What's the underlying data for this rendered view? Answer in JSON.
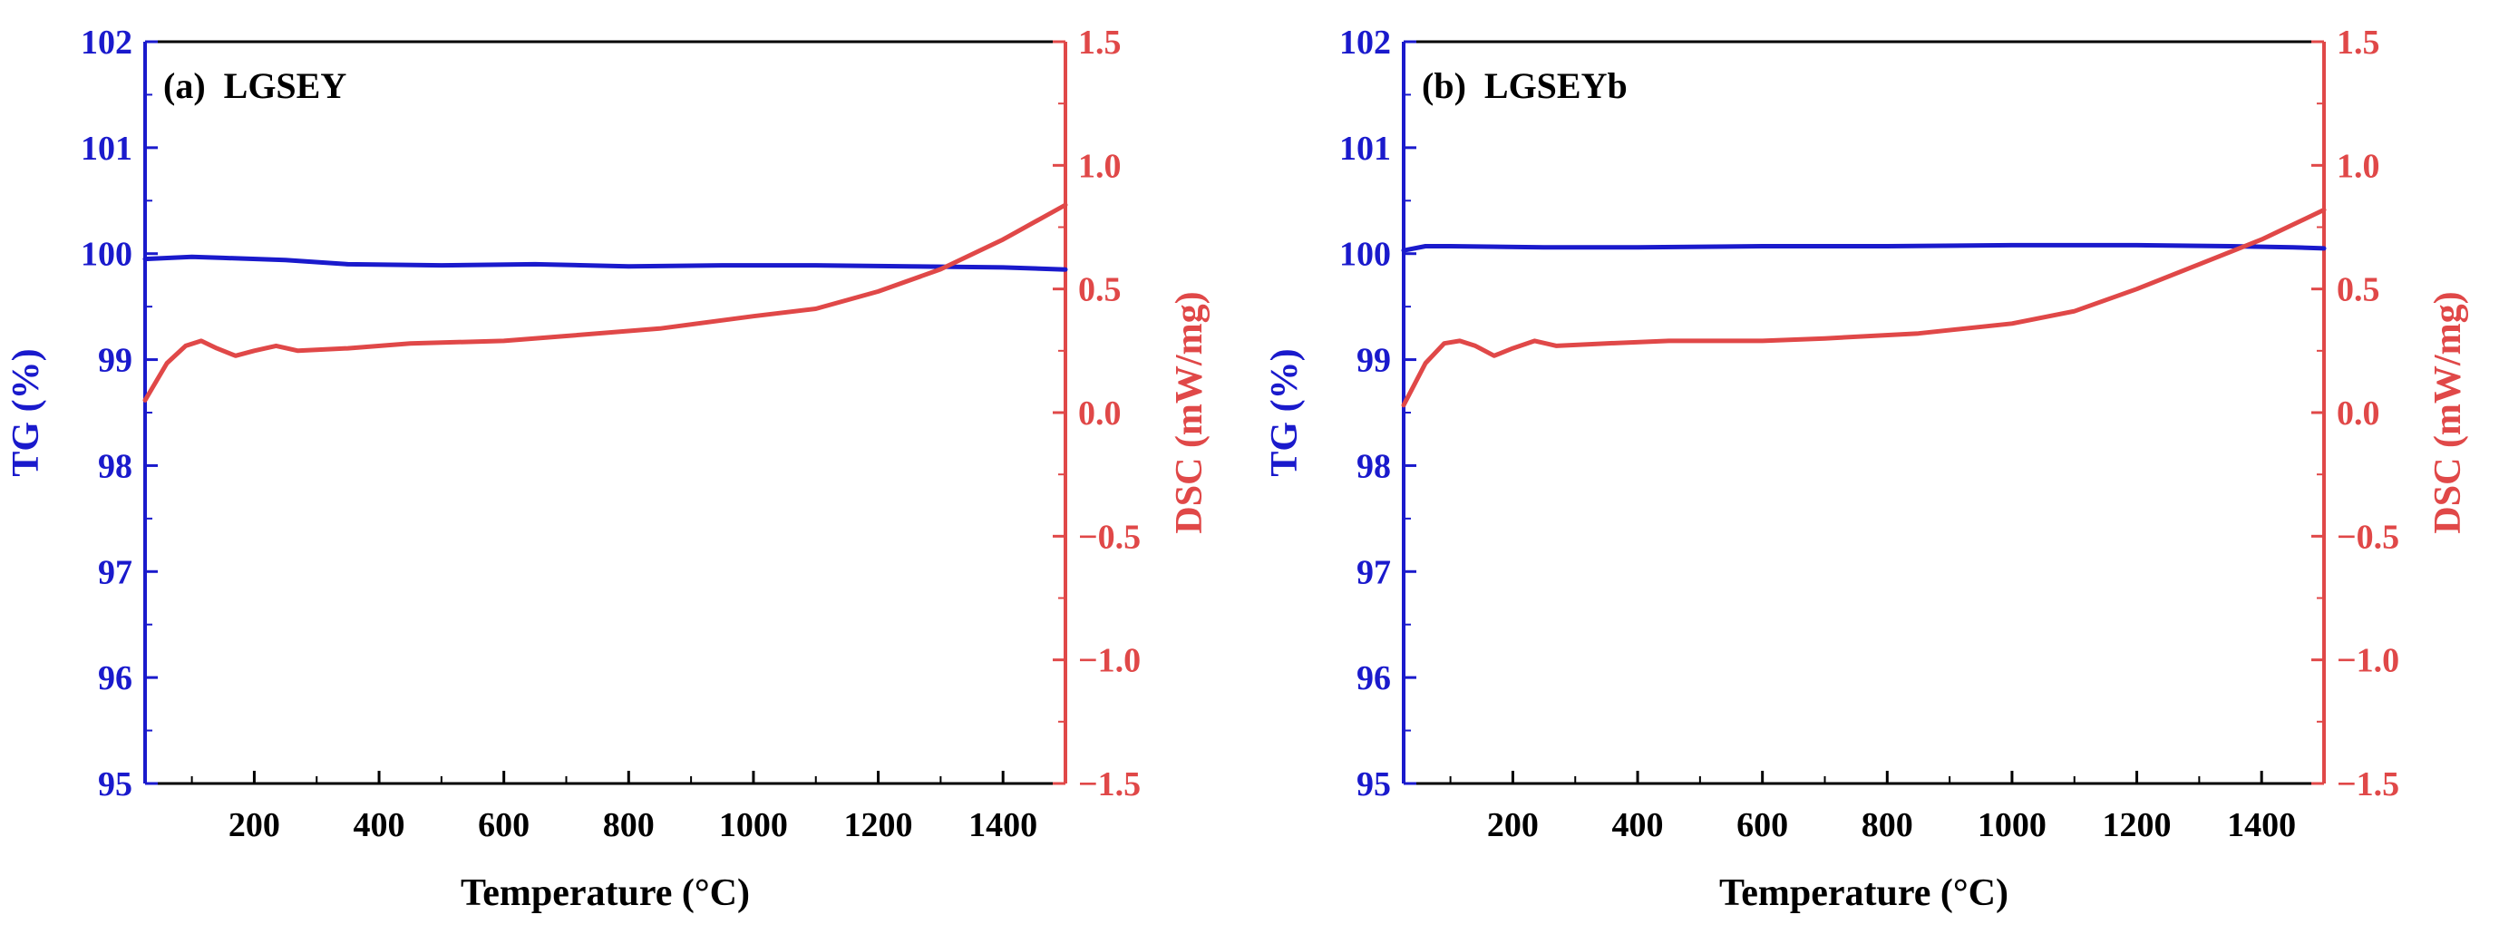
{
  "colors": {
    "tg": "#1a1acc",
    "dsc": "#e04848",
    "axis": "#000000"
  },
  "chart_data": [
    {
      "type": "line",
      "title": "(a)  LGSEY",
      "xlabel": "Temperature (°C)",
      "ylabel_left": "TG (%)",
      "ylabel_right": "DSC (mW/mg)",
      "xlim": [
        25,
        1500
      ],
      "ylim_left": [
        95,
        102
      ],
      "ylim_right": [
        -1.5,
        1.5
      ],
      "x_ticks": [
        200,
        400,
        600,
        800,
        1000,
        1200,
        1400
      ],
      "x_tick_labels": [
        "200",
        "400",
        "600",
        "800",
        "1000",
        "1200",
        "1400"
      ],
      "y_left_ticks": [
        95,
        96,
        97,
        98,
        99,
        100,
        101,
        102
      ],
      "y_left_tick_labels": [
        "95",
        "96",
        "97",
        "98",
        "99",
        "100",
        "101",
        "102"
      ],
      "y_right_ticks": [
        -1.5,
        -1.0,
        -0.5,
        0.0,
        0.5,
        1.0,
        1.5
      ],
      "y_right_tick_labels": [
        "−1.5",
        "−1.0",
        "−0.5",
        "0.0",
        "0.5",
        "1.0",
        "1.5"
      ],
      "grid": false,
      "series": [
        {
          "axis": "left",
          "x": [
            25,
            100,
            150,
            250,
            350,
            500,
            650,
            800,
            950,
            1100,
            1250,
            1400,
            1500
          ],
          "y": [
            99.95,
            99.97,
            99.96,
            99.94,
            99.9,
            99.89,
            99.9,
            99.88,
            99.89,
            99.89,
            99.88,
            99.87,
            99.85
          ]
        },
        {
          "axis": "right",
          "x": [
            25,
            60,
            90,
            115,
            140,
            170,
            200,
            235,
            270,
            350,
            450,
            600,
            700,
            850,
            1000,
            1100,
            1200,
            1300,
            1400,
            1500
          ],
          "y": [
            0.05,
            0.2,
            0.27,
            0.29,
            0.26,
            0.23,
            0.25,
            0.27,
            0.25,
            0.26,
            0.28,
            0.29,
            0.31,
            0.34,
            0.39,
            0.42,
            0.49,
            0.58,
            0.7,
            0.84
          ]
        }
      ]
    },
    {
      "type": "line",
      "title": "(b)  LGSEYb",
      "xlabel": "Temperature (°C)",
      "ylabel_left": "TG (%)",
      "ylabel_right": "DSC (mW/mg)",
      "xlim": [
        25,
        1500
      ],
      "ylim_left": [
        95,
        102
      ],
      "ylim_right": [
        -1.5,
        1.5
      ],
      "x_ticks": [
        200,
        400,
        600,
        800,
        1000,
        1200,
        1400
      ],
      "x_tick_labels": [
        "200",
        "400",
        "600",
        "800",
        "1000",
        "1200",
        "1400"
      ],
      "y_left_ticks": [
        95,
        96,
        97,
        98,
        99,
        100,
        101,
        102
      ],
      "y_left_tick_labels": [
        "95",
        "96",
        "97",
        "98",
        "99",
        "100",
        "101",
        "102"
      ],
      "y_right_ticks": [
        -1.5,
        -1.0,
        -0.5,
        0.0,
        0.5,
        1.0,
        1.5
      ],
      "y_right_tick_labels": [
        "−1.5",
        "−1.0",
        "−0.5",
        "0.0",
        "0.5",
        "1.0",
        "1.5"
      ],
      "grid": false,
      "series": [
        {
          "axis": "left",
          "x": [
            25,
            60,
            100,
            250,
            400,
            600,
            800,
            1000,
            1200,
            1350,
            1450,
            1500
          ],
          "y": [
            100.03,
            100.07,
            100.07,
            100.06,
            100.06,
            100.07,
            100.07,
            100.08,
            100.08,
            100.07,
            100.06,
            100.05
          ]
        },
        {
          "axis": "right",
          "x": [
            25,
            60,
            90,
            115,
            140,
            170,
            200,
            235,
            270,
            350,
            450,
            600,
            700,
            850,
            1000,
            1100,
            1200,
            1300,
            1400,
            1500
          ],
          "y": [
            0.03,
            0.2,
            0.28,
            0.29,
            0.27,
            0.23,
            0.26,
            0.29,
            0.27,
            0.28,
            0.29,
            0.29,
            0.3,
            0.32,
            0.36,
            0.41,
            0.5,
            0.6,
            0.7,
            0.82
          ]
        }
      ]
    }
  ]
}
